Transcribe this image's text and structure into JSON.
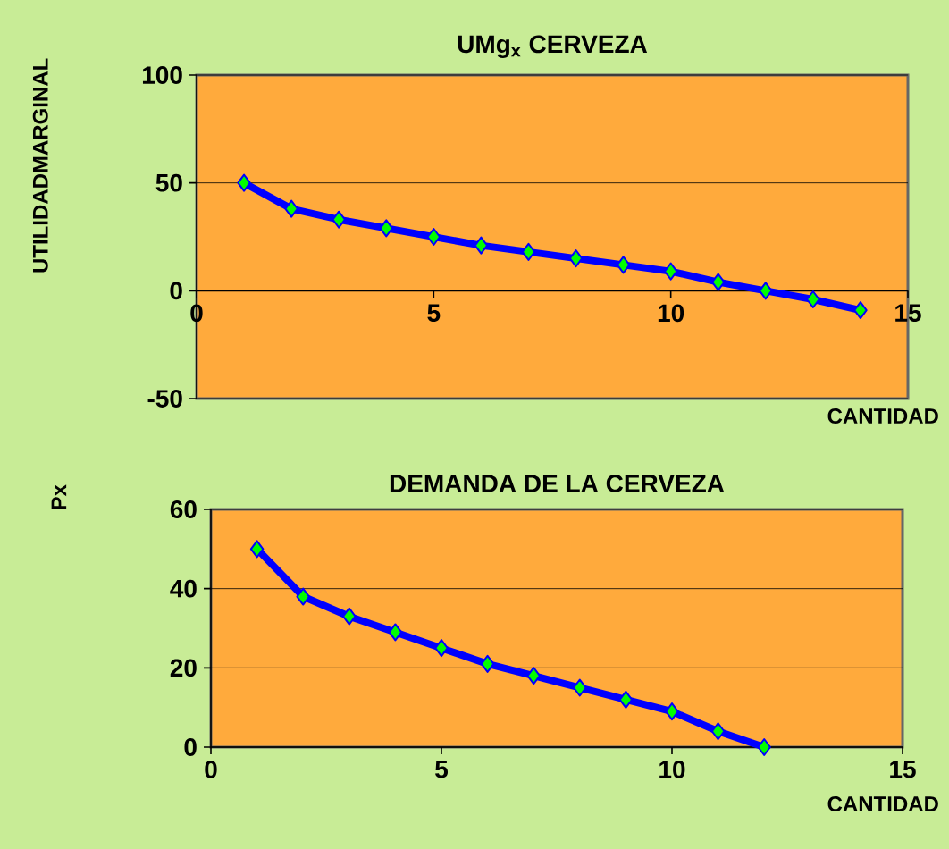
{
  "chart_data": [
    {
      "type": "line",
      "title": "UMg$_{x}$ CERVEZA",
      "xlabel": "CANTIDAD",
      "ylabel": "UTILIDADMARGINAL",
      "x": [
        1,
        2,
        3,
        4,
        5,
        6,
        7,
        8,
        9,
        10,
        11,
        12,
        13,
        14
      ],
      "series": [
        {
          "color": "#0000ff",
          "values": [
            50,
            38,
            33,
            29,
            25,
            21,
            18,
            15,
            12,
            9,
            4,
            0,
            -4,
            -9
          ]
        }
      ],
      "xlim": [
        0,
        15
      ],
      "xticks": [
        0,
        5,
        10,
        15
      ],
      "ylim": [
        -50,
        100
      ],
      "yticks": [
        -50,
        0,
        50,
        100
      ],
      "grid": "y",
      "marker": "diamond"
    },
    {
      "type": "line",
      "title": "DEMANDA DE LA CERVEZA",
      "xlabel": "CANTIDAD",
      "ylabel": "Px",
      "x": [
        1,
        2,
        3,
        4,
        5,
        6,
        7,
        8,
        9,
        10,
        11,
        12
      ],
      "series": [
        {
          "color": "#0000ff",
          "values": [
            50,
            38,
            33,
            29,
            25,
            21,
            18,
            15,
            12,
            9,
            4,
            0
          ]
        }
      ],
      "xlim": [
        0,
        15
      ],
      "xticks": [
        0,
        5,
        10,
        15
      ],
      "ylim": [
        0,
        60
      ],
      "yticks": [
        0,
        20,
        40,
        60
      ],
      "grid": "y",
      "marker": "diamond"
    }
  ]
}
